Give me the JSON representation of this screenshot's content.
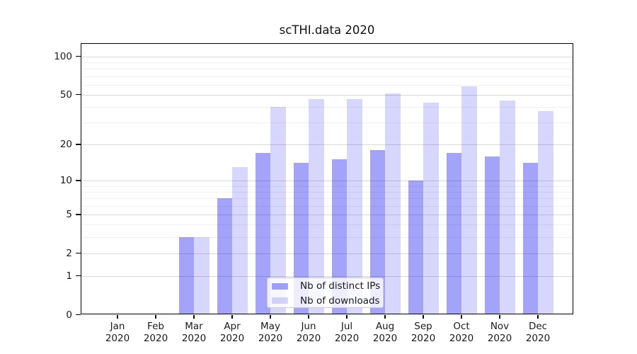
{
  "chart_data": {
    "type": "bar",
    "title": "scTHI.data 2020",
    "year_label": "2020",
    "categories": [
      "Jan",
      "Feb",
      "Mar",
      "Apr",
      "May",
      "Jun",
      "Jul",
      "Aug",
      "Sep",
      "Oct",
      "Nov",
      "Dec"
    ],
    "series": [
      {
        "name": "Nb of distinct IPs",
        "color": "rgba(0,0,240,0.36)",
        "values": [
          0,
          0,
          3,
          7,
          17,
          14,
          15,
          18,
          10,
          17,
          16,
          14
        ]
      },
      {
        "name": "Nb of downloads",
        "color": "rgba(0,0,240,0.155)",
        "values": [
          0,
          0,
          3,
          13,
          40,
          46,
          46,
          51,
          43,
          58,
          45,
          37
        ]
      }
    ],
    "xlabel": "",
    "ylabel": "",
    "y_scale": "log10(1+x)",
    "ylim": [
      0,
      130
    ],
    "y_ticks": [
      100,
      50,
      20,
      10,
      5,
      2,
      1,
      0
    ],
    "y_minor_gridlines": [
      3,
      4,
      6,
      7,
      8,
      9,
      30,
      40,
      60,
      70,
      80,
      90
    ],
    "grid": true,
    "legend_position": "lower-center-inside"
  },
  "colors": {
    "axis": "#000000",
    "grid_major": "#d9d9d9",
    "grid_minor": "#f0f0f0",
    "text": "#1a1a1a",
    "legend_border": "#cccccc",
    "legend_bg": "rgba(255,255,255,0.8)"
  }
}
